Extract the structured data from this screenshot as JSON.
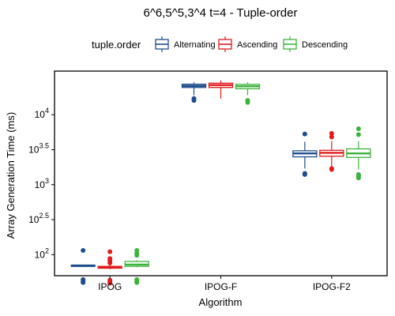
{
  "chart_data": {
    "type": "boxplot",
    "title": "6^6,5^5,3^4 t=4 - Tuple-order",
    "xlabel": "Algorithm",
    "ylabel": "Array Generation Time (ms)",
    "y_scale": "log10",
    "ylim": [
      50,
      42000
    ],
    "y_ticks": [
      {
        "value": 100,
        "base": "10",
        "exp": "2"
      },
      {
        "value": 316.23,
        "base": "10",
        "exp": "2.5"
      },
      {
        "value": 1000,
        "base": "10",
        "exp": "3"
      },
      {
        "value": 3162.3,
        "base": "10",
        "exp": "3.5"
      },
      {
        "value": 10000,
        "base": "10",
        "exp": "4"
      }
    ],
    "categories": [
      "IPOG",
      "IPOG-F",
      "IPOG-F2"
    ],
    "grid": false,
    "legend": {
      "title": "tuple.order",
      "position": "top",
      "entries": [
        "Alternating",
        "Ascending",
        "Descending"
      ]
    },
    "series": [
      {
        "name": "Alternating",
        "color": "#1f4e8c",
        "boxes": [
          {
            "min": 67,
            "q1": 68,
            "median": 69,
            "q3": 71,
            "max": 72,
            "outliers": [
              40,
              42,
              44,
              115
            ]
          },
          {
            "min": 19000,
            "q1": 24500,
            "median": 25800,
            "q3": 27300,
            "max": 29000,
            "outliers": [
              16000,
              17000
            ]
          },
          {
            "min": 1700,
            "q1": 2500,
            "median": 2800,
            "q3": 3050,
            "max": 4100,
            "outliers": [
              1400,
              1450,
              5300
            ]
          }
        ]
      },
      {
        "name": "Ascending",
        "color": "#e31a1c",
        "boxes": [
          {
            "min": 62,
            "q1": 64,
            "median": 66,
            "q3": 68,
            "max": 72,
            "outliers": [
              39,
              41,
              43,
              76,
              82,
              88,
              110
            ]
          },
          {
            "min": 17000,
            "q1": 24500,
            "median": 26500,
            "q3": 28200,
            "max": 31000,
            "outliers": []
          },
          {
            "min": 1800,
            "q1": 2550,
            "median": 2850,
            "q3": 3100,
            "max": 4200,
            "outliers": [
              1650,
              1700,
              4800,
              5400
            ]
          }
        ]
      },
      {
        "name": "Descending",
        "color": "#3cb33c",
        "boxes": [
          {
            "min": 66,
            "q1": 68,
            "median": 72,
            "q3": 80,
            "max": 83,
            "outliers": [
              40,
              42,
              44,
              98,
              105,
              115
            ]
          },
          {
            "min": 19000,
            "q1": 23500,
            "median": 25500,
            "q3": 27200,
            "max": 29000,
            "outliers": [
              15000,
              16000
            ]
          },
          {
            "min": 1650,
            "q1": 2450,
            "median": 2800,
            "q3": 3250,
            "max": 4200,
            "outliers": [
              1250,
              1300,
              1350,
              1400,
              5200,
              6300
            ]
          }
        ]
      }
    ]
  }
}
